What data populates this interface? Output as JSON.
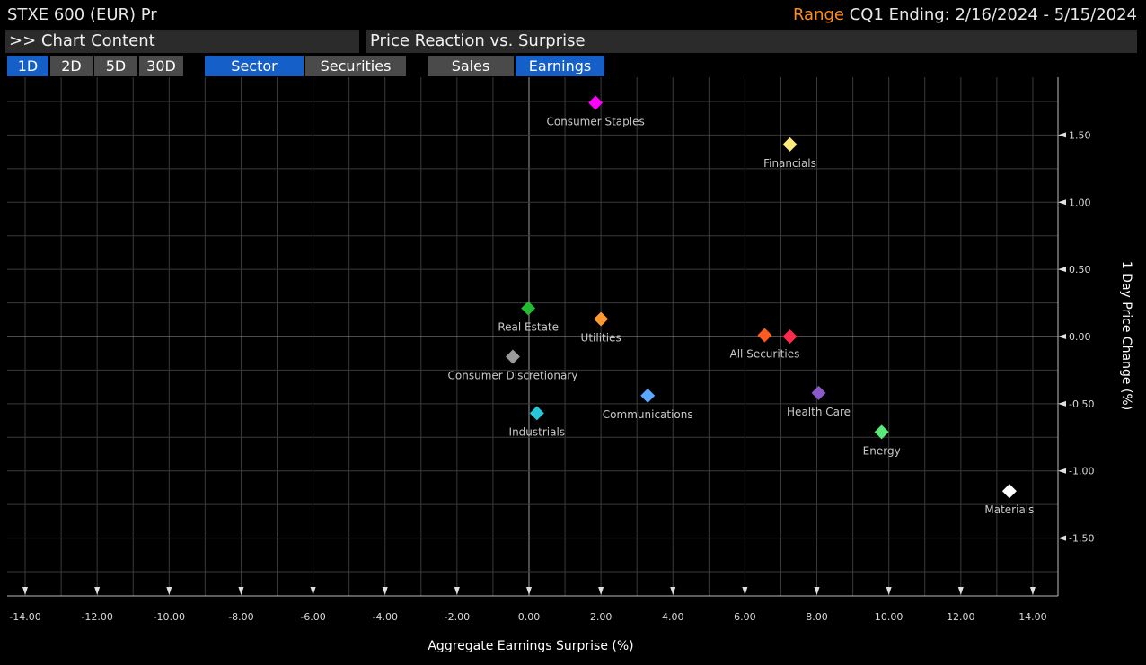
{
  "header": {
    "ticker": "STXE 600 (EUR) Pr",
    "range_label": "Range",
    "range_text": "CQ1 Ending: 2/16/2024 - 5/15/2024"
  },
  "menu": {
    "chart_content": ">> Chart Content",
    "chart_title": "Price Reaction vs. Surprise"
  },
  "toolbar": {
    "periods": [
      "1D",
      "2D",
      "5D",
      "30D"
    ],
    "active_period": "1D",
    "views": [
      "Sector",
      "Securities"
    ],
    "active_view": "Sector",
    "metrics": [
      "Sales",
      "Earnings"
    ],
    "active_metric": "Earnings"
  },
  "colors": {
    "accent": "#ff8c1a",
    "button_active": "#1560c8",
    "button": "#4a4a4a"
  },
  "chart_data": {
    "type": "scatter",
    "xlabel": "Aggregate Earnings Surprise (%)",
    "ylabel": "1 Day Price Change (%)",
    "xlim": [
      -14.5,
      14.7
    ],
    "ylim": [
      -1.93,
      1.93
    ],
    "xticks": [
      "-14.00",
      "-12.00",
      "-10.00",
      "-8.00",
      "-6.00",
      "-4.00",
      "-2.00",
      "0.00",
      "2.00",
      "4.00",
      "6.00",
      "8.00",
      "10.00",
      "12.00",
      "14.00"
    ],
    "yticks": [
      "1.50",
      "1.00",
      "0.50",
      "0.00",
      "-0.50",
      "-1.00",
      "-1.50"
    ],
    "grid": true,
    "points": [
      {
        "name": "Consumer Staples",
        "x": 1.85,
        "y": 1.74,
        "color": "#ff00ff"
      },
      {
        "name": "Financials",
        "x": 7.25,
        "y": 1.43,
        "color": "#ffea7a"
      },
      {
        "name": "Real Estate",
        "x": -0.02,
        "y": 0.21,
        "color": "#22bb33"
      },
      {
        "name": "Utilities",
        "x": 2.0,
        "y": 0.13,
        "color": "#ff9a30"
      },
      {
        "name": "All Securities",
        "x": 6.55,
        "y": 0.01,
        "color": "#ff5a1f"
      },
      {
        "name": "",
        "x": 7.25,
        "y": 0.0,
        "color": "#ff2a4a"
      },
      {
        "name": "Consumer Discretionary",
        "x": -0.45,
        "y": -0.15,
        "color": "#9a9a9a"
      },
      {
        "name": "Communications",
        "x": 3.3,
        "y": -0.44,
        "color": "#5aa8ff"
      },
      {
        "name": "Health Care",
        "x": 8.05,
        "y": -0.42,
        "color": "#8a5ac8"
      },
      {
        "name": "Industrials",
        "x": 0.22,
        "y": -0.57,
        "color": "#28c6d8"
      },
      {
        "name": "Energy",
        "x": 9.8,
        "y": -0.71,
        "color": "#5ae878"
      },
      {
        "name": "Materials",
        "x": 13.35,
        "y": -1.15,
        "color": "#ffffff"
      }
    ]
  }
}
